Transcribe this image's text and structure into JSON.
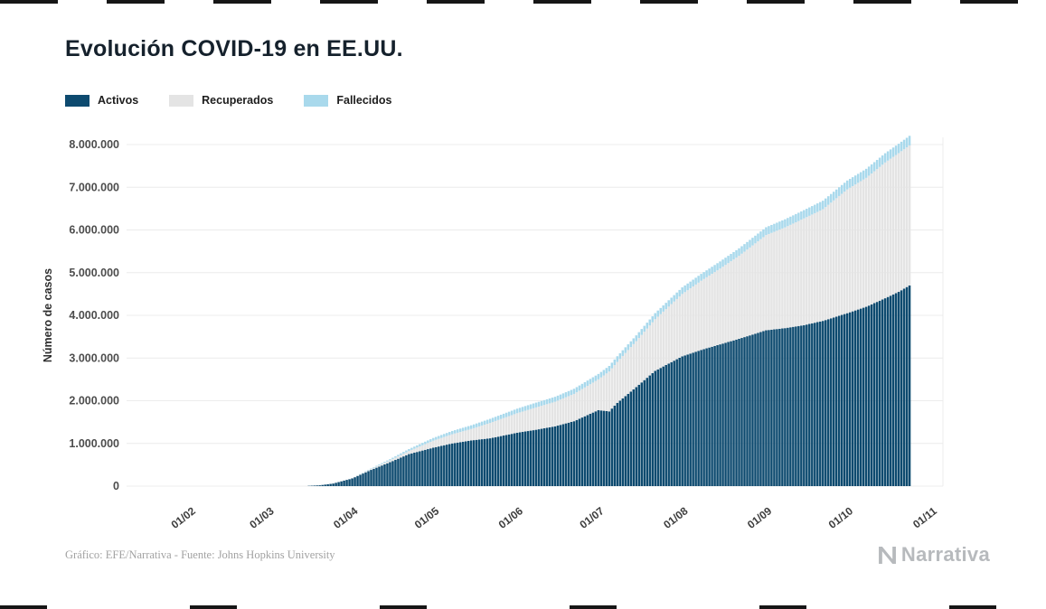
{
  "page": {
    "title": "Evolución COVID-19 en EE.UU."
  },
  "legend": {
    "items": [
      {
        "label": "Activos",
        "color": "#0d4a6f"
      },
      {
        "label": "Recuperados",
        "color": "#e4e4e4"
      },
      {
        "label": "Fallecidos",
        "color": "#a9d9ec"
      }
    ]
  },
  "footer": {
    "credit": "Gráfico: EFE/Narrativa - Fuente: Johns Hopkins University",
    "brand": "Narrativa"
  },
  "chart_data": {
    "type": "area",
    "stacked": true,
    "title": "Evolución COVID-19 en EE.UU.",
    "ylabel": "Número de casos",
    "xlabel": "",
    "ylim": [
      0,
      8000000
    ],
    "ytick_step": 1000000,
    "grid": "horizontal",
    "legend_position": "top-left",
    "x_ticks": [
      "01/02",
      "01/03",
      "01/04",
      "01/05",
      "01/06",
      "01/07",
      "01/08",
      "01/09",
      "01/10",
      "01/11"
    ],
    "series_names": [
      "Activos",
      "Recuperados",
      "Fallecidos"
    ],
    "colors": {
      "activos": "#0d4a6f",
      "recuperados": "#e4e4e4",
      "fallecidos": "#a9d9ec"
    },
    "columns": [
      "date",
      "activos",
      "recuperados",
      "fallecidos"
    ],
    "points": [
      [
        "01/02",
        0,
        0,
        0
      ],
      [
        "15/02",
        0,
        0,
        0
      ],
      [
        "01/03",
        100,
        10,
        1
      ],
      [
        "10/03",
        800,
        30,
        30
      ],
      [
        "15/03",
        3500,
        60,
        70
      ],
      [
        "20/03",
        19000,
        150,
        260
      ],
      [
        "25/03",
        60000,
        400,
        800
      ],
      [
        "01/04",
        180000,
        7000,
        4000
      ],
      [
        "08/04",
        380000,
        21000,
        13000
      ],
      [
        "15/04",
        560000,
        44000,
        28000
      ],
      [
        "22/04",
        750000,
        72000,
        46000
      ],
      [
        "01/05",
        900000,
        164000,
        64000
      ],
      [
        "08/05",
        1000000,
        216000,
        76000
      ],
      [
        "15/05",
        1070000,
        268000,
        86000
      ],
      [
        "22/05",
        1120000,
        361000,
        95000
      ],
      [
        "01/06",
        1250000,
        458000,
        106000
      ],
      [
        "08/06",
        1320000,
        524000,
        112000
      ],
      [
        "15/06",
        1400000,
        576000,
        116000
      ],
      [
        "22/06",
        1520000,
        640000,
        120000
      ],
      [
        "01/07",
        1780000,
        720000,
        127000
      ],
      [
        "05/07",
        1750000,
        935000,
        130000
      ],
      [
        "08/07",
        1950000,
        960000,
        132000
      ],
      [
        "15/07",
        2320000,
        1075000,
        136000
      ],
      [
        "22/07",
        2700000,
        1210000,
        142000
      ],
      [
        "01/08",
        3040000,
        1460000,
        155000
      ],
      [
        "08/08",
        3190000,
        1620000,
        161000
      ],
      [
        "15/08",
        3320000,
        1775000,
        168000
      ],
      [
        "22/08",
        3450000,
        1945000,
        175000
      ],
      [
        "01/09",
        3650000,
        2230000,
        184000
      ],
      [
        "08/09",
        3700000,
        2360000,
        190000
      ],
      [
        "15/09",
        3770000,
        2500000,
        195000
      ],
      [
        "22/09",
        3870000,
        2615000,
        200000
      ],
      [
        "01/10",
        4050000,
        2900000,
        208000
      ],
      [
        "08/10",
        4200000,
        3020000,
        212000
      ],
      [
        "15/10",
        4400000,
        3180000,
        217000
      ],
      [
        "20/10",
        4550000,
        3250000,
        220000
      ],
      [
        "24/10",
        4700000,
        3280000,
        225000
      ]
    ]
  }
}
